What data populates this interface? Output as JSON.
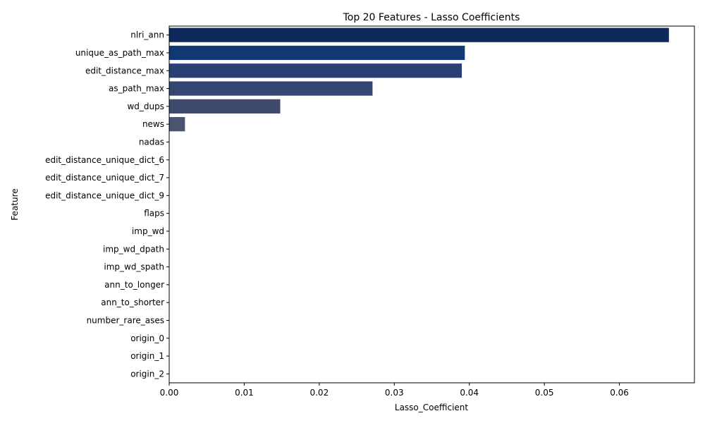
{
  "chart_data": {
    "type": "bar",
    "orientation": "horizontal",
    "title": "Top 20 Features - Lasso Coefficients",
    "xlabel": "Lasso_Coefficient",
    "ylabel": "Feature",
    "xlim": [
      0,
      0.07
    ],
    "xticks": [
      "0.00",
      "0.01",
      "0.02",
      "0.03",
      "0.04",
      "0.05",
      "0.06"
    ],
    "xtick_values": [
      0,
      0.01,
      0.02,
      0.03,
      0.04,
      0.05,
      0.06
    ],
    "grid": false,
    "categories": [
      "nlri_ann",
      "unique_as_path_max",
      "edit_distance_max",
      "as_path_max",
      "wd_dups",
      "news",
      "nadas",
      "edit_distance_unique_dict_6",
      "edit_distance_unique_dict_7",
      "edit_distance_unique_dict_9",
      "flaps",
      "imp_wd",
      "imp_wd_dpath",
      "imp_wd_spath",
      "ann_to_longer",
      "ann_to_shorter",
      "number_rare_ases",
      "origin_0",
      "origin_1",
      "origin_2"
    ],
    "values": [
      0.0666,
      0.0394,
      0.039,
      0.0271,
      0.0148,
      0.0021,
      0,
      0,
      0,
      0,
      0,
      0,
      0,
      0,
      0,
      0,
      0,
      0,
      0,
      0
    ],
    "colors": [
      "#0e2a5c",
      "#103873",
      "#2a3f74",
      "#334772",
      "#3e4a6e",
      "#4b5570",
      "#56606f",
      "#5c6570",
      "#626a71",
      "#686f72",
      "#6e7473",
      "#747974",
      "#7a7e76",
      "#808377",
      "#868878",
      "#8c8d79",
      "#92927a",
      "#98977b",
      "#9e9c7c",
      "#a4a17d"
    ]
  }
}
